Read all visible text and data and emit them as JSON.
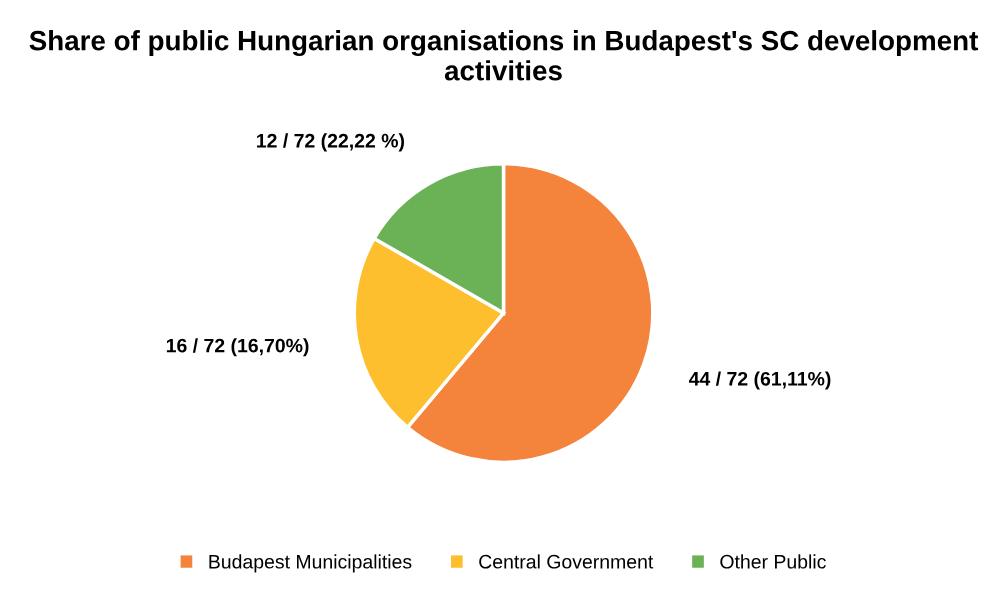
{
  "chart_data": {
    "type": "pie",
    "title": "Share of public Hungarian organisations in Budapest's SC development activities",
    "categories": [
      "Budapest Municipalities",
      "Central Government",
      "Other Public"
    ],
    "values": [
      44,
      16,
      12
    ],
    "colors": [
      "#f4843c",
      "#fdbf2d",
      "#6bb155"
    ],
    "value_labels": [
      "44 / 72 (61,11%)",
      "16 / 72 (16,70%)",
      "12 / 72 (22,22 %)"
    ],
    "legend": "bottom"
  }
}
